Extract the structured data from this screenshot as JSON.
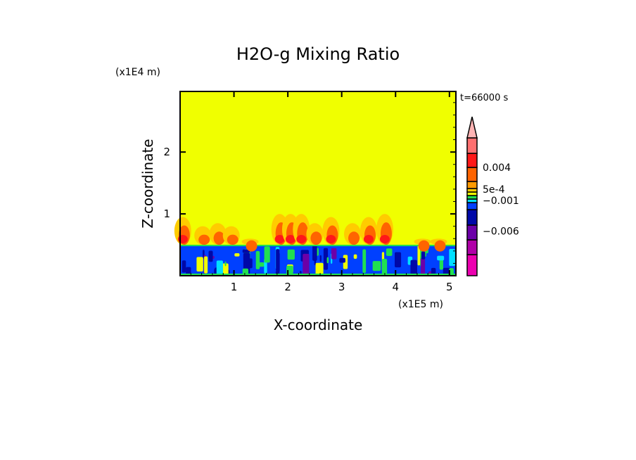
{
  "chart_data": {
    "type": "heatmap",
    "title": "H2O-g Mixing Ratio",
    "xlabel": "X-coordinate",
    "ylabel": "Z-coordinate",
    "x_unit": "(x1E5 m)",
    "y_unit": "(x1E4 m)",
    "time_label": "t=66000 s",
    "xlim": [
      0,
      5.12
    ],
    "ylim": [
      0,
      2.98
    ],
    "xticks": [
      "1",
      "2",
      "3",
      "4",
      "5"
    ],
    "xtick_values": [
      1,
      2,
      3,
      4,
      5
    ],
    "yticks": [
      "1",
      "2"
    ],
    "ytick_values": [
      1,
      2
    ],
    "boundary_layer_top": 0.5,
    "colorbar": {
      "colors": [
        "#ec00b0",
        "#b000a8",
        "#6c00a8",
        "#0008a8",
        "#0040ff",
        "#00e0ff",
        "#20e050",
        "#f0ff00",
        "#ffcc00",
        "#ff9a00",
        "#ff6400",
        "#ff1818",
        "#ff7070"
      ],
      "extend_color": "#ffb4b4",
      "labels": [
        {
          "text": "0.004",
          "level": 11
        },
        {
          "text": "5e-4",
          "level": 7.8
        },
        {
          "text": "−0.001",
          "level": 6.6
        },
        {
          "text": "−0.006",
          "level": 2.6
        }
      ]
    },
    "background_color": "#f0ff00"
  }
}
